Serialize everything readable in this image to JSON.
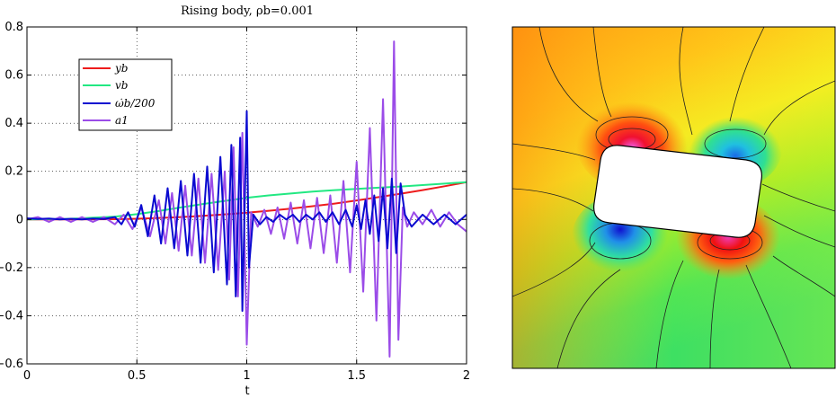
{
  "chart_data": {
    "type": "line",
    "title": "Rising body, ρb=0.001",
    "xlabel": "t",
    "ylabel": "",
    "xlim": [
      0,
      2
    ],
    "ylim": [
      -0.6,
      0.8
    ],
    "xticks": [
      0,
      0.5,
      1,
      1.5,
      2
    ],
    "xtick_labels": [
      "0",
      "0.5",
      "1",
      "1.5",
      "2"
    ],
    "yticks": [
      -0.6,
      -0.4,
      -0.2,
      0,
      0.2,
      0.4,
      0.6,
      0.8
    ],
    "ytick_labels": [
      "−0.6",
      "−0.4",
      "−0.2",
      "0",
      "0.2",
      "0.4",
      "0.6",
      "0.8"
    ],
    "grid": true,
    "legend_position": "top-left",
    "series": [
      {
        "name": "yb",
        "color": "#ee1c1c",
        "x": [
          0,
          0.2,
          0.4,
          0.5,
          0.6,
          0.7,
          0.8,
          0.9,
          1.0,
          1.1,
          1.2,
          1.3,
          1.4,
          1.5,
          1.6,
          1.7,
          1.8,
          1.9,
          2.0
        ],
        "y": [
          0,
          0,
          0.001,
          0.003,
          0.006,
          0.01,
          0.015,
          0.021,
          0.028,
          0.036,
          0.045,
          0.055,
          0.066,
          0.079,
          0.093,
          0.107,
          0.122,
          0.138,
          0.155
        ]
      },
      {
        "name": "vb",
        "color": "#22e882",
        "x": [
          0,
          0.2,
          0.4,
          0.5,
          0.6,
          0.7,
          0.8,
          0.9,
          1.0,
          1.1,
          1.2,
          1.3,
          1.4,
          1.5,
          1.6,
          1.7,
          1.8,
          1.9,
          2.0
        ],
        "y": [
          0,
          0.003,
          0.012,
          0.022,
          0.035,
          0.05,
          0.064,
          0.077,
          0.09,
          0.1,
          0.108,
          0.116,
          0.122,
          0.127,
          0.132,
          0.137,
          0.143,
          0.149,
          0.155
        ]
      },
      {
        "name": "ω̇b/200",
        "color": "#0a0ad0",
        "x": [
          0,
          0.05,
          0.1,
          0.15,
          0.2,
          0.25,
          0.3,
          0.35,
          0.4,
          0.43,
          0.46,
          0.49,
          0.52,
          0.55,
          0.58,
          0.61,
          0.64,
          0.67,
          0.7,
          0.73,
          0.76,
          0.79,
          0.82,
          0.85,
          0.88,
          0.91,
          0.93,
          0.95,
          0.97,
          0.98,
          1.0,
          1.01,
          1.03,
          1.06,
          1.09,
          1.12,
          1.15,
          1.18,
          1.21,
          1.24,
          1.27,
          1.3,
          1.33,
          1.36,
          1.39,
          1.42,
          1.45,
          1.48,
          1.5,
          1.52,
          1.54,
          1.56,
          1.58,
          1.6,
          1.62,
          1.64,
          1.66,
          1.68,
          1.7,
          1.72,
          1.75,
          1.8,
          1.85,
          1.9,
          1.95,
          2.0
        ],
        "y": [
          0.005,
          0.002,
          0.004,
          0.0,
          0.003,
          0.0,
          0.004,
          0.002,
          0.01,
          -0.02,
          0.03,
          -0.03,
          0.06,
          -0.07,
          0.1,
          -0.1,
          0.13,
          -0.12,
          0.16,
          -0.15,
          0.19,
          -0.18,
          0.22,
          -0.22,
          0.26,
          -0.27,
          0.31,
          -0.32,
          0.34,
          -0.38,
          0.45,
          -0.2,
          0.02,
          -0.02,
          0.01,
          -0.01,
          0.02,
          0.0,
          0.02,
          -0.01,
          0.02,
          0.0,
          0.03,
          -0.01,
          0.03,
          -0.02,
          0.04,
          -0.03,
          0.06,
          -0.04,
          0.08,
          -0.06,
          0.1,
          -0.09,
          0.13,
          -0.12,
          0.17,
          -0.14,
          0.15,
          0.02,
          -0.03,
          0.02,
          -0.02,
          0.02,
          -0.02,
          0.02
        ]
      },
      {
        "name": "a1",
        "color": "#9b4ce8",
        "x": [
          0,
          0.05,
          0.1,
          0.15,
          0.2,
          0.25,
          0.3,
          0.35,
          0.4,
          0.44,
          0.48,
          0.52,
          0.56,
          0.6,
          0.63,
          0.66,
          0.69,
          0.72,
          0.75,
          0.78,
          0.81,
          0.84,
          0.87,
          0.9,
          0.92,
          0.94,
          0.96,
          0.98,
          1.0,
          1.02,
          1.05,
          1.08,
          1.11,
          1.14,
          1.17,
          1.2,
          1.23,
          1.26,
          1.29,
          1.32,
          1.35,
          1.38,
          1.41,
          1.44,
          1.47,
          1.5,
          1.53,
          1.56,
          1.59,
          1.62,
          1.65,
          1.67,
          1.69,
          1.71,
          1.73,
          1.76,
          1.8,
          1.84,
          1.88,
          1.92,
          1.96,
          2.0
        ],
        "y": [
          0.0,
          0.01,
          -0.01,
          0.01,
          -0.01,
          0.01,
          -0.01,
          0.01,
          -0.02,
          0.02,
          -0.04,
          0.05,
          -0.07,
          0.08,
          -0.1,
          0.11,
          -0.13,
          0.14,
          -0.15,
          0.17,
          -0.18,
          0.19,
          -0.21,
          0.2,
          -0.25,
          0.3,
          -0.32,
          0.36,
          -0.52,
          0.03,
          -0.03,
          0.04,
          -0.06,
          0.05,
          -0.08,
          0.07,
          -0.1,
          0.08,
          -0.12,
          0.09,
          -0.14,
          0.1,
          -0.18,
          0.16,
          -0.22,
          0.24,
          -0.3,
          0.38,
          -0.42,
          0.5,
          -0.57,
          0.74,
          -0.5,
          0.05,
          -0.03,
          0.03,
          -0.02,
          0.04,
          -0.03,
          0.03,
          -0.02,
          -0.05
        ]
      }
    ]
  },
  "legend": [
    {
      "label": "yb",
      "color": "#ee1c1c"
    },
    {
      "label": "vb",
      "color": "#22e882"
    },
    {
      "label": "ω̇b/200",
      "color": "#0a0ad0"
    },
    {
      "label": "a1",
      "color": "#9b4ce8"
    }
  ],
  "field_panel": {
    "colormap": [
      "#1a1adb",
      "#22c8e8",
      "#22e860",
      "#8cf030",
      "#f8f020",
      "#ffa010",
      "#f01010",
      "#f040f0"
    ],
    "description_colors": {
      "left": "#ffa010",
      "right": "#f8f020",
      "bottom": "#40e850"
    }
  }
}
